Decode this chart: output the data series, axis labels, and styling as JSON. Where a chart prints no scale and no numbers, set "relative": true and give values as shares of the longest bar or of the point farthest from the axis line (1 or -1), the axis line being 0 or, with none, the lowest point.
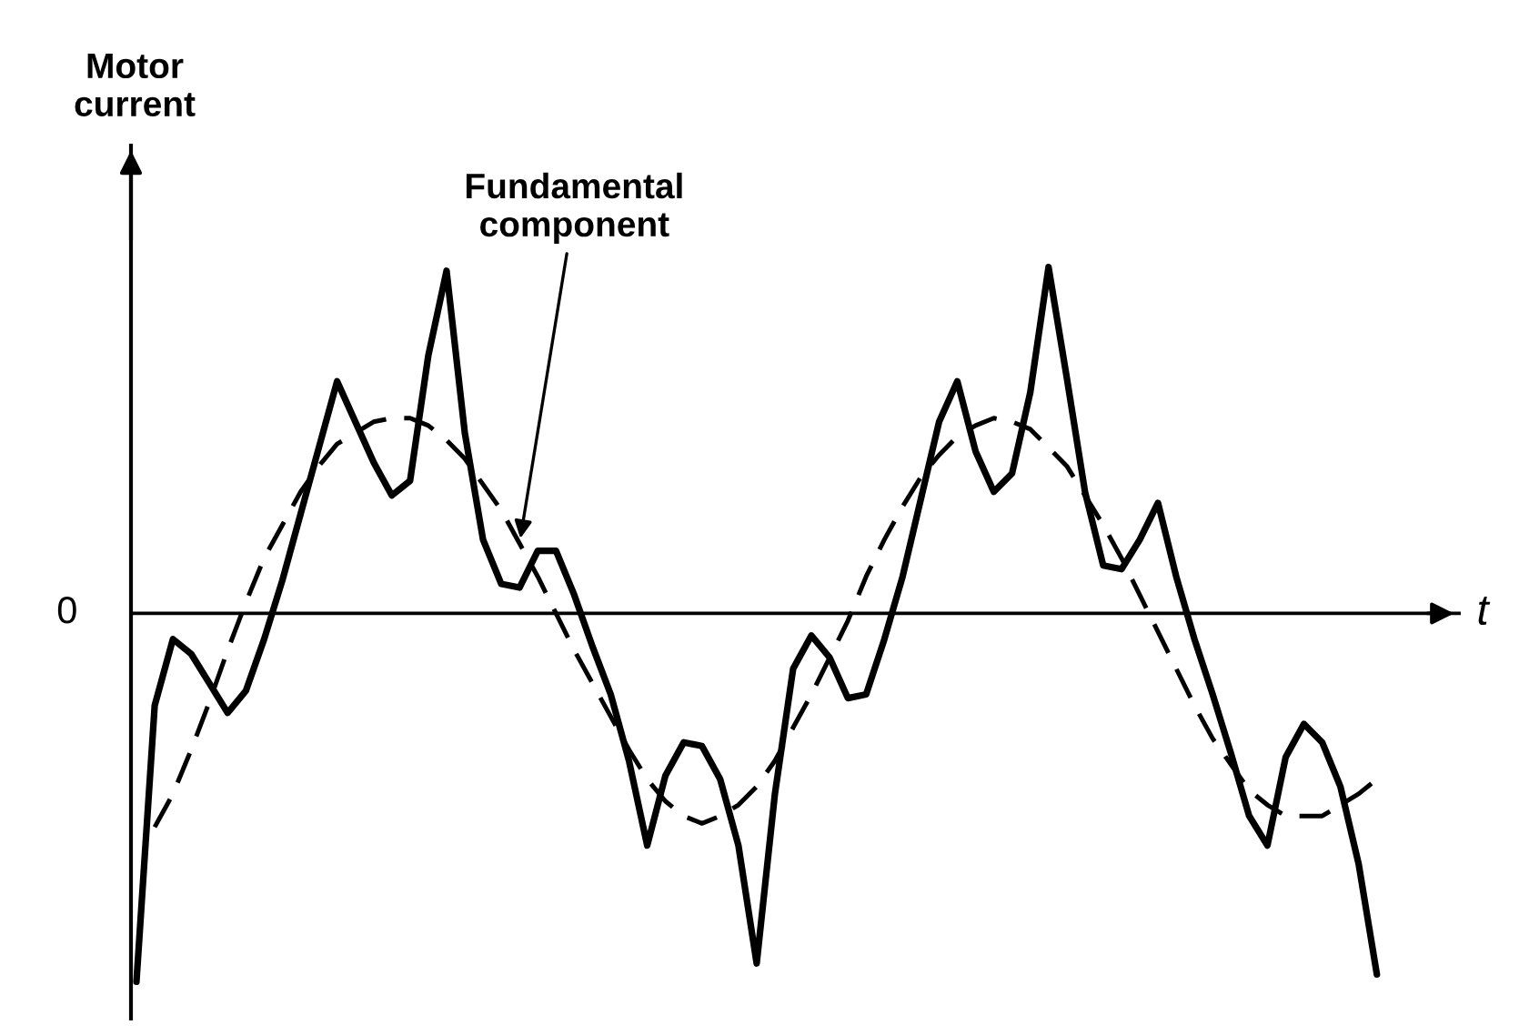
{
  "chart_data": {
    "type": "line",
    "relative": true,
    "ylabel": "Motor current",
    "xlabel": "t",
    "marker": "none",
    "annotations": [
      "0",
      "Fundamental\ncomponent"
    ],
    "categories": [
      null,
      null,
      null,
      null,
      null,
      null,
      null,
      null,
      null,
      null,
      null,
      null,
      null,
      null,
      null,
      null,
      null,
      null,
      null,
      null,
      null,
      null,
      null,
      null,
      null,
      null,
      null,
      null,
      null,
      null,
      null,
      null,
      null,
      null,
      null,
      null,
      null,
      null,
      null,
      null,
      null,
      null,
      null,
      null,
      null,
      null,
      null,
      null,
      null,
      null,
      null,
      null,
      null,
      null,
      null,
      null,
      null,
      null,
      null,
      null,
      null,
      null,
      null,
      null,
      null,
      null,
      null,
      null,
      null
    ],
    "series": [
      {
        "color": "#000000",
        "line_style": "solid",
        "values": [
          -1.0,
          -0.25,
          -0.07,
          -0.11,
          -0.19,
          -0.27,
          -0.21,
          -0.07,
          0.09,
          0.27,
          0.45,
          0.63,
          0.52,
          0.41,
          0.32,
          0.36,
          0.7,
          0.93,
          0.49,
          0.2,
          0.08,
          0.07,
          0.17,
          0.17,
          0.05,
          -0.09,
          -0.22,
          -0.4,
          -0.63,
          -0.44,
          -0.35,
          -0.36,
          -0.45,
          -0.63,
          -0.95,
          -0.49,
          -0.15,
          -0.06,
          -0.12,
          -0.23,
          -0.22,
          -0.07,
          0.1,
          0.31,
          0.52,
          0.63,
          0.44,
          0.33,
          0.38,
          0.6,
          0.94,
          0.64,
          0.33,
          0.13,
          0.12,
          0.2,
          0.3,
          0.1,
          -0.07,
          -0.22,
          -0.38,
          -0.55,
          -0.63,
          -0.39,
          -0.3,
          -0.35,
          -0.47,
          -0.68,
          -0.98
        ]
      },
      {
        "color": "#000000",
        "line_style": "dashed",
        "values": [
          null,
          -0.58,
          -0.49,
          -0.37,
          -0.24,
          -0.1,
          0.03,
          0.15,
          0.24,
          0.33,
          0.4,
          0.46,
          0.49,
          0.52,
          0.53,
          0.53,
          0.51,
          0.47,
          0.42,
          0.35,
          0.28,
          0.19,
          0.1,
          0.0,
          -0.1,
          -0.19,
          -0.28,
          -0.37,
          -0.45,
          -0.51,
          -0.55,
          -0.57,
          -0.55,
          -0.52,
          -0.47,
          -0.4,
          -0.31,
          -0.22,
          -0.12,
          -0.02,
          0.1,
          0.2,
          0.29,
          0.37,
          0.43,
          0.48,
          0.51,
          0.53,
          0.52,
          0.5,
          0.45,
          0.4,
          0.32,
          0.24,
          0.15,
          0.05,
          -0.05,
          -0.15,
          -0.25,
          -0.34,
          -0.41,
          -0.48,
          -0.52,
          -0.55,
          -0.55,
          -0.55,
          -0.52,
          -0.49,
          -0.45
        ]
      }
    ]
  }
}
